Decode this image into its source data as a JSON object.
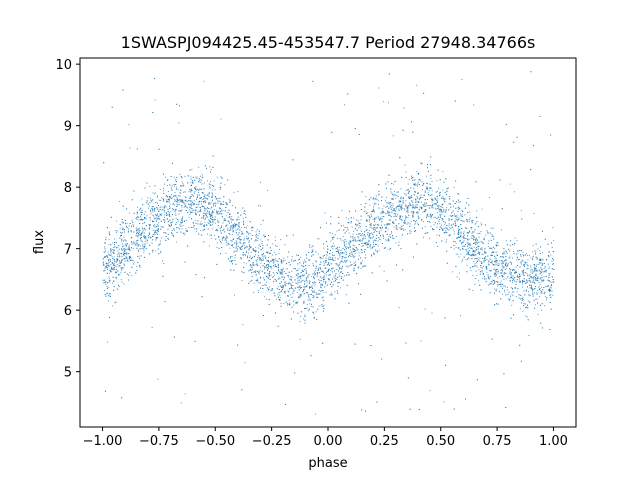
{
  "chart_data": {
    "type": "scatter",
    "title": "1SWASPJ094425.45-453547.7 Period 27948.34766s",
    "xlabel": "phase",
    "ylabel": "flux",
    "xlim": [
      -1.1,
      1.1
    ],
    "ylim": [
      4.1,
      10.1
    ],
    "xticks": [
      -1.0,
      -0.75,
      -0.5,
      -0.25,
      0.0,
      0.25,
      0.5,
      0.75,
      1.0
    ],
    "xtick_labels": [
      "−1.00",
      "−0.75",
      "−0.50",
      "−0.25",
      "0.00",
      "0.25",
      "0.50",
      "0.75",
      "1.00"
    ],
    "yticks": [
      5,
      6,
      7,
      8,
      9,
      10
    ],
    "ytick_labels": [
      "5",
      "6",
      "7",
      "8",
      "9",
      "10"
    ],
    "grid": false,
    "legend": "none",
    "marker_color": "#1f77b4",
    "series": [
      {
        "x": [
          -1.0,
          -0.95,
          -0.9,
          -0.85,
          -0.8,
          -0.75,
          -0.7,
          -0.65,
          -0.6,
          -0.55,
          -0.5,
          -0.45,
          -0.4,
          -0.35,
          -0.3,
          -0.25,
          -0.2,
          -0.15,
          -0.1,
          -0.05,
          0.0,
          0.05,
          0.1,
          0.15,
          0.2,
          0.25,
          0.3,
          0.35,
          0.4,
          0.45,
          0.5,
          0.55,
          0.6,
          0.65,
          0.7,
          0.75,
          0.8,
          0.85,
          0.9,
          0.95,
          1.0
        ],
        "y": [
          6.6,
          6.8,
          7.0,
          7.2,
          7.4,
          7.5,
          7.65,
          7.75,
          7.8,
          7.7,
          7.6,
          7.4,
          7.2,
          7.0,
          6.8,
          6.6,
          6.5,
          6.45,
          6.45,
          6.5,
          6.6,
          6.8,
          7.0,
          7.2,
          7.35,
          7.5,
          7.65,
          7.75,
          7.8,
          7.75,
          7.6,
          7.4,
          7.2,
          7.0,
          6.85,
          6.7,
          6.6,
          6.55,
          6.5,
          6.55,
          6.6
        ]
      }
    ]
  }
}
